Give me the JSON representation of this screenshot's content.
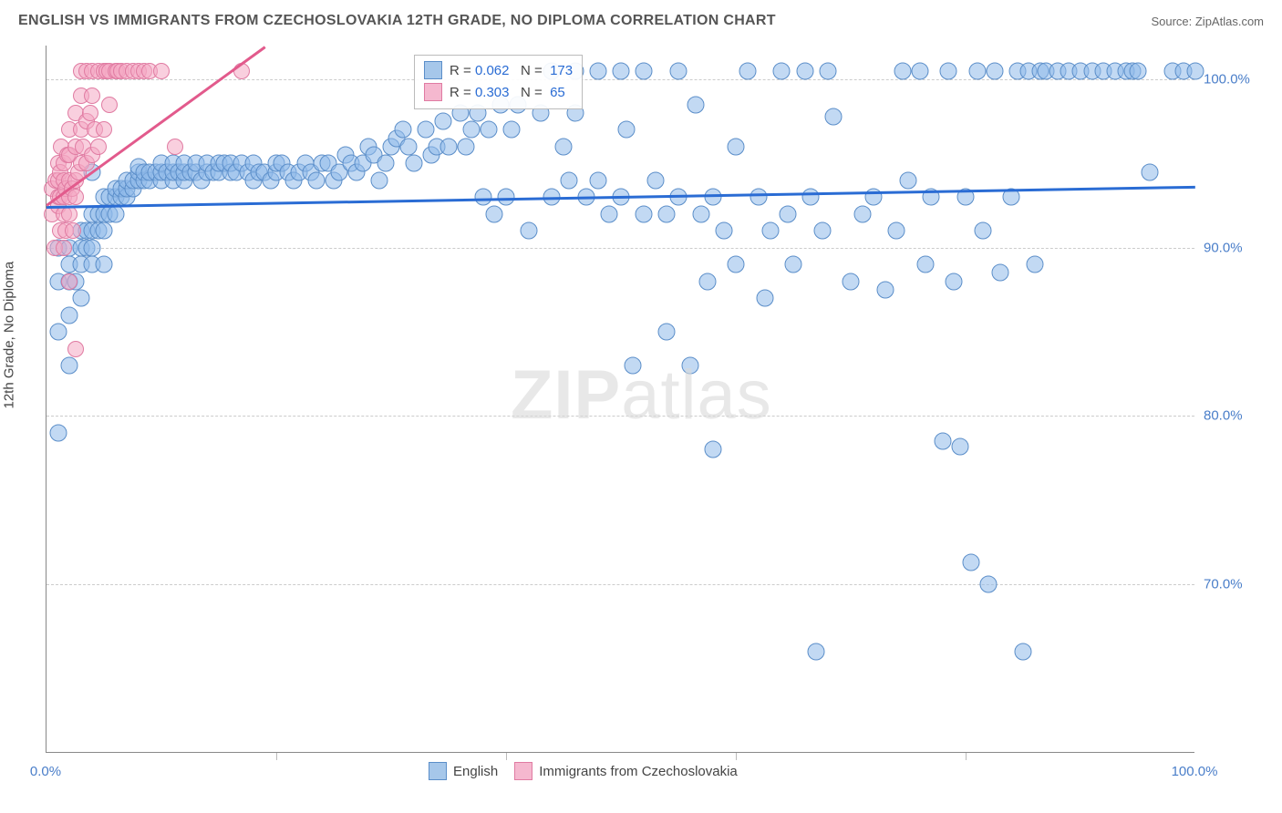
{
  "header": {
    "title": "ENGLISH VS IMMIGRANTS FROM CZECHOSLOVAKIA 12TH GRADE, NO DIPLOMA CORRELATION CHART",
    "source": "Source: ZipAtlas.com"
  },
  "chart": {
    "type": "scatter",
    "y_axis_label": "12th Grade, No Diploma",
    "xlim": [
      0,
      100
    ],
    "ylim": [
      60,
      102
    ],
    "x_ticks": [
      0,
      20,
      40,
      60,
      80,
      100
    ],
    "x_tick_labels": [
      "0.0%",
      "",
      "",
      "",
      "",
      "100.0%"
    ],
    "y_ticks": [
      70,
      80,
      90,
      100
    ],
    "y_tick_labels": [
      "70.0%",
      "80.0%",
      "90.0%",
      "100.0%"
    ],
    "grid_color": "#cccccc",
    "background_color": "#ffffff",
    "watermark": {
      "text_bold": "ZIP",
      "text_light": "atlas"
    },
    "series": [
      {
        "name": "English",
        "color_fill": "#a6c7ea",
        "color_stroke": "#5b8ec9",
        "reg_color": "#2a6cd4",
        "r": "0.062",
        "n": "173",
        "regression": {
          "x1": 0,
          "y1": 92.5,
          "x2": 100,
          "y2": 93.7
        },
        "points": [
          [
            1,
            79
          ],
          [
            1,
            85
          ],
          [
            1,
            88
          ],
          [
            1,
            90
          ],
          [
            2,
            83
          ],
          [
            2,
            86
          ],
          [
            2,
            88
          ],
          [
            2,
            89
          ],
          [
            2,
            90
          ],
          [
            2.5,
            88
          ],
          [
            3,
            87
          ],
          [
            3,
            89
          ],
          [
            3,
            90
          ],
          [
            3,
            91
          ],
          [
            3.5,
            90
          ],
          [
            3.5,
            91
          ],
          [
            4,
            89
          ],
          [
            4,
            90
          ],
          [
            4,
            91
          ],
          [
            4,
            92
          ],
          [
            4,
            94.5
          ],
          [
            4.5,
            91
          ],
          [
            4.5,
            92
          ],
          [
            5,
            91
          ],
          [
            5,
            92
          ],
          [
            5,
            93
          ],
          [
            5,
            89
          ],
          [
            5.5,
            92
          ],
          [
            5.5,
            93
          ],
          [
            6,
            92
          ],
          [
            6,
            93
          ],
          [
            6,
            93.5
          ],
          [
            6.5,
            93
          ],
          [
            6.5,
            93.5
          ],
          [
            7,
            93
          ],
          [
            7,
            93.5
          ],
          [
            7,
            94
          ],
          [
            7.5,
            93.5
          ],
          [
            7.5,
            94
          ],
          [
            8,
            94
          ],
          [
            8,
            94.5
          ],
          [
            8,
            94.8
          ],
          [
            8.5,
            94
          ],
          [
            8.5,
            94.5
          ],
          [
            9,
            94
          ],
          [
            9,
            94.5
          ],
          [
            9.5,
            94.5
          ],
          [
            10,
            94
          ],
          [
            10,
            94.5
          ],
          [
            10,
            95
          ],
          [
            10.5,
            94.5
          ],
          [
            11,
            94
          ],
          [
            11,
            94.5
          ],
          [
            11,
            95
          ],
          [
            11.5,
            94.5
          ],
          [
            12,
            94
          ],
          [
            12,
            94.5
          ],
          [
            12,
            95
          ],
          [
            12.5,
            94.5
          ],
          [
            13,
            94.5
          ],
          [
            13,
            95
          ],
          [
            13.5,
            94
          ],
          [
            14,
            94.5
          ],
          [
            14,
            95
          ],
          [
            14.5,
            94.5
          ],
          [
            15,
            94.5
          ],
          [
            15,
            95
          ],
          [
            15.5,
            95
          ],
          [
            16,
            94.5
          ],
          [
            16,
            95
          ],
          [
            16.5,
            94.5
          ],
          [
            17,
            95
          ],
          [
            17.5,
            94.5
          ],
          [
            18,
            94
          ],
          [
            18,
            95
          ],
          [
            18.5,
            94.5
          ],
          [
            19,
            94.5
          ],
          [
            19.5,
            94
          ],
          [
            20,
            94.5
          ],
          [
            20,
            95
          ],
          [
            20.5,
            95
          ],
          [
            21,
            94.5
          ],
          [
            21.5,
            94
          ],
          [
            22,
            94.5
          ],
          [
            22.5,
            95
          ],
          [
            23,
            94.5
          ],
          [
            23.5,
            94
          ],
          [
            24,
            95
          ],
          [
            24.5,
            95
          ],
          [
            25,
            94
          ],
          [
            25.5,
            94.5
          ],
          [
            26,
            95.5
          ],
          [
            26.5,
            95
          ],
          [
            27,
            94.5
          ],
          [
            27.5,
            95
          ],
          [
            28,
            96
          ],
          [
            28.5,
            95.5
          ],
          [
            29,
            94
          ],
          [
            29.5,
            95
          ],
          [
            30,
            96
          ],
          [
            30.5,
            96.5
          ],
          [
            31,
            97
          ],
          [
            31.5,
            96
          ],
          [
            32,
            95
          ],
          [
            33,
            97
          ],
          [
            33.5,
            95.5
          ],
          [
            34,
            96
          ],
          [
            34.5,
            97.5
          ],
          [
            35,
            96
          ],
          [
            36,
            98
          ],
          [
            36.5,
            96
          ],
          [
            37,
            97
          ],
          [
            37.5,
            98
          ],
          [
            38,
            93
          ],
          [
            38.5,
            97
          ],
          [
            39,
            92
          ],
          [
            39.5,
            98.5
          ],
          [
            40,
            93
          ],
          [
            40.5,
            97
          ],
          [
            41,
            98.5
          ],
          [
            42,
            91
          ],
          [
            43,
            98
          ],
          [
            44,
            93
          ],
          [
            44,
            100.5
          ],
          [
            45,
            96
          ],
          [
            45.5,
            94
          ],
          [
            46,
            98
          ],
          [
            46,
            100.5
          ],
          [
            47,
            93
          ],
          [
            48,
            94
          ],
          [
            48,
            100.5
          ],
          [
            49,
            92
          ],
          [
            50,
            93
          ],
          [
            50,
            100.5
          ],
          [
            50.5,
            97
          ],
          [
            51,
            83
          ],
          [
            52,
            92
          ],
          [
            52,
            100.5
          ],
          [
            53,
            94
          ],
          [
            54,
            92
          ],
          [
            54,
            85
          ],
          [
            55,
            93
          ],
          [
            55,
            100.5
          ],
          [
            56,
            83
          ],
          [
            56.5,
            98.5
          ],
          [
            57,
            92
          ],
          [
            57.5,
            88
          ],
          [
            58,
            93
          ],
          [
            58,
            78
          ],
          [
            59,
            91
          ],
          [
            60,
            96
          ],
          [
            60,
            89
          ],
          [
            61,
            100.5
          ],
          [
            62,
            93
          ],
          [
            62.5,
            87
          ],
          [
            63,
            91
          ],
          [
            64,
            100.5
          ],
          [
            64.5,
            92
          ],
          [
            65,
            89
          ],
          [
            66,
            100.5
          ],
          [
            66.5,
            93
          ],
          [
            67,
            66
          ],
          [
            67.5,
            91
          ],
          [
            68,
            100.5
          ],
          [
            68.5,
            97.8
          ],
          [
            70,
            88
          ],
          [
            71,
            92
          ],
          [
            72,
            93
          ],
          [
            73,
            87.5
          ],
          [
            74,
            91
          ],
          [
            74.5,
            100.5
          ],
          [
            75,
            94
          ],
          [
            76,
            100.5
          ],
          [
            76.5,
            89
          ],
          [
            77,
            93
          ],
          [
            78,
            78.5
          ],
          [
            78.5,
            100.5
          ],
          [
            79,
            88
          ],
          [
            79.5,
            78.2
          ],
          [
            80,
            93
          ],
          [
            80.5,
            71.3
          ],
          [
            81,
            100.5
          ],
          [
            81.5,
            91
          ],
          [
            82,
            70
          ],
          [
            82.5,
            100.5
          ],
          [
            83,
            88.5
          ],
          [
            84,
            93
          ],
          [
            84.5,
            100.5
          ],
          [
            85,
            66
          ],
          [
            85.5,
            100.5
          ],
          [
            86,
            89
          ],
          [
            86.5,
            100.5
          ],
          [
            87,
            100.5
          ],
          [
            88,
            100.5
          ],
          [
            89,
            100.5
          ],
          [
            90,
            100.5
          ],
          [
            91,
            100.5
          ],
          [
            92,
            100.5
          ],
          [
            93,
            100.5
          ],
          [
            94,
            100.5
          ],
          [
            94.5,
            100.5
          ],
          [
            95,
            100.5
          ],
          [
            96,
            94.5
          ],
          [
            98,
            100.5
          ],
          [
            99,
            100.5
          ],
          [
            100,
            100.5
          ]
        ]
      },
      {
        "name": "Immigrants from Czechoslovakia",
        "color_fill": "#f5b8cf",
        "color_stroke": "#e07ba2",
        "reg_color": "#e25a8c",
        "r": "0.303",
        "n": "65",
        "regression": {
          "x1": 0,
          "y1": 92.6,
          "x2": 19,
          "y2": 102
        },
        "points": [
          [
            0.5,
            92
          ],
          [
            0.5,
            93.5
          ],
          [
            0.7,
            90
          ],
          [
            0.8,
            94
          ],
          [
            1,
            92.5
          ],
          [
            1,
            93
          ],
          [
            1,
            94
          ],
          [
            1,
            95
          ],
          [
            1.2,
            91
          ],
          [
            1.2,
            93
          ],
          [
            1.2,
            94.5
          ],
          [
            1.3,
            96
          ],
          [
            1.5,
            90
          ],
          [
            1.5,
            92
          ],
          [
            1.5,
            93
          ],
          [
            1.5,
            94
          ],
          [
            1.5,
            95
          ],
          [
            1.7,
            91
          ],
          [
            1.7,
            93.5
          ],
          [
            1.8,
            95.5
          ],
          [
            2,
            88
          ],
          [
            2,
            92
          ],
          [
            2,
            93
          ],
          [
            2,
            94
          ],
          [
            2,
            95.5
          ],
          [
            2,
            97
          ],
          [
            2.2,
            93.5
          ],
          [
            2.3,
            91
          ],
          [
            2.5,
            84
          ],
          [
            2.5,
            93
          ],
          [
            2.5,
            94
          ],
          [
            2.5,
            96
          ],
          [
            2.5,
            98
          ],
          [
            2.8,
            94.5
          ],
          [
            3,
            95
          ],
          [
            3,
            97
          ],
          [
            3,
            99
          ],
          [
            3,
            100.5
          ],
          [
            3.2,
            96
          ],
          [
            3.5,
            95
          ],
          [
            3.5,
            97.5
          ],
          [
            3.5,
            100.5
          ],
          [
            3.8,
            98
          ],
          [
            4,
            95.5
          ],
          [
            4,
            99
          ],
          [
            4,
            100.5
          ],
          [
            4.2,
            97
          ],
          [
            4.5,
            96
          ],
          [
            4.5,
            100.5
          ],
          [
            5,
            97
          ],
          [
            5,
            100.5
          ],
          [
            5.2,
            100.5
          ],
          [
            5.5,
            98.5
          ],
          [
            5.5,
            100.5
          ],
          [
            6,
            100.5
          ],
          [
            6.2,
            100.5
          ],
          [
            6.5,
            100.5
          ],
          [
            7,
            100.5
          ],
          [
            7.5,
            100.5
          ],
          [
            8,
            100.5
          ],
          [
            8.5,
            100.5
          ],
          [
            9,
            100.5
          ],
          [
            10,
            100.5
          ],
          [
            11.2,
            96
          ],
          [
            17,
            100.5
          ]
        ]
      }
    ],
    "bottom_legend": [
      {
        "label": "English",
        "fill": "#a6c7ea",
        "stroke": "#5b8ec9"
      },
      {
        "label": "Immigrants from Czechoslovakia",
        "fill": "#f5b8cf",
        "stroke": "#e07ba2"
      }
    ]
  }
}
